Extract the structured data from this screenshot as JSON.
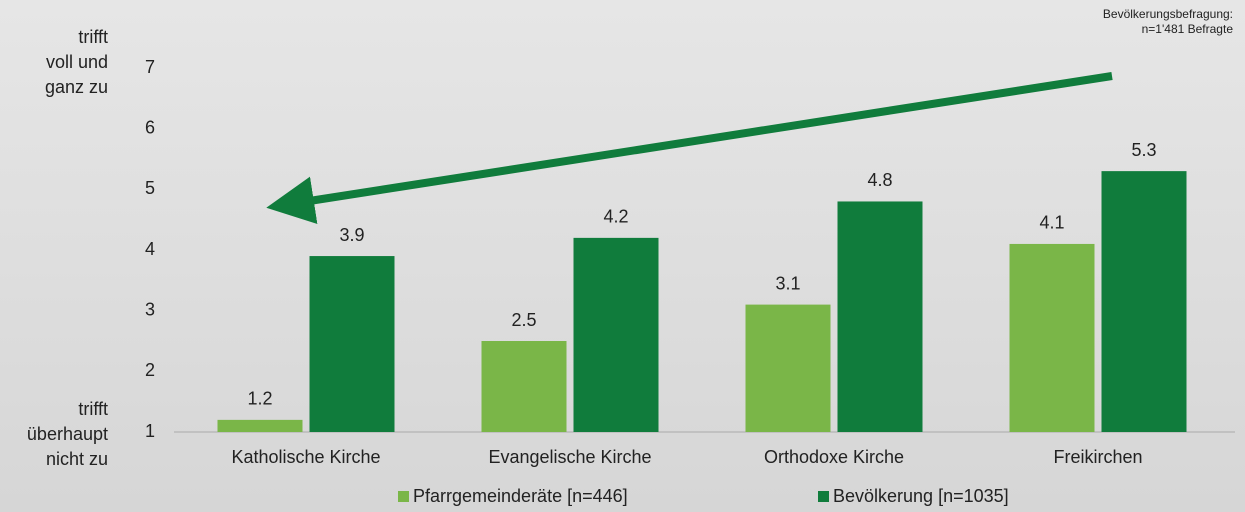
{
  "chart_data": {
    "type": "bar",
    "y_label_top": [
      "trifft",
      "voll und",
      "ganz zu"
    ],
    "y_label_bottom": [
      "trifft",
      "überhaupt",
      "nicht zu"
    ],
    "annotation": [
      "Bevölkerungsbefragung:",
      "n=1'481 Befragte"
    ],
    "categories": [
      "Katholische Kirche",
      "Evangelische Kirche",
      "Orthodoxe Kirche",
      "Freikirchen"
    ],
    "series": [
      {
        "name": "Pfarrgemeinderäte [n=446]",
        "color": "#7ab648",
        "values": [
          1.2,
          2.5,
          3.1,
          4.1
        ]
      },
      {
        "name": "Bevölkerung [n=1035]",
        "color": "#107c3c",
        "values": [
          3.9,
          4.2,
          4.8,
          5.3
        ]
      }
    ],
    "ylim": [
      1,
      7
    ],
    "yticks": [
      1,
      2,
      3,
      4,
      5,
      6,
      7
    ],
    "grid": false,
    "legend": "bottom"
  }
}
